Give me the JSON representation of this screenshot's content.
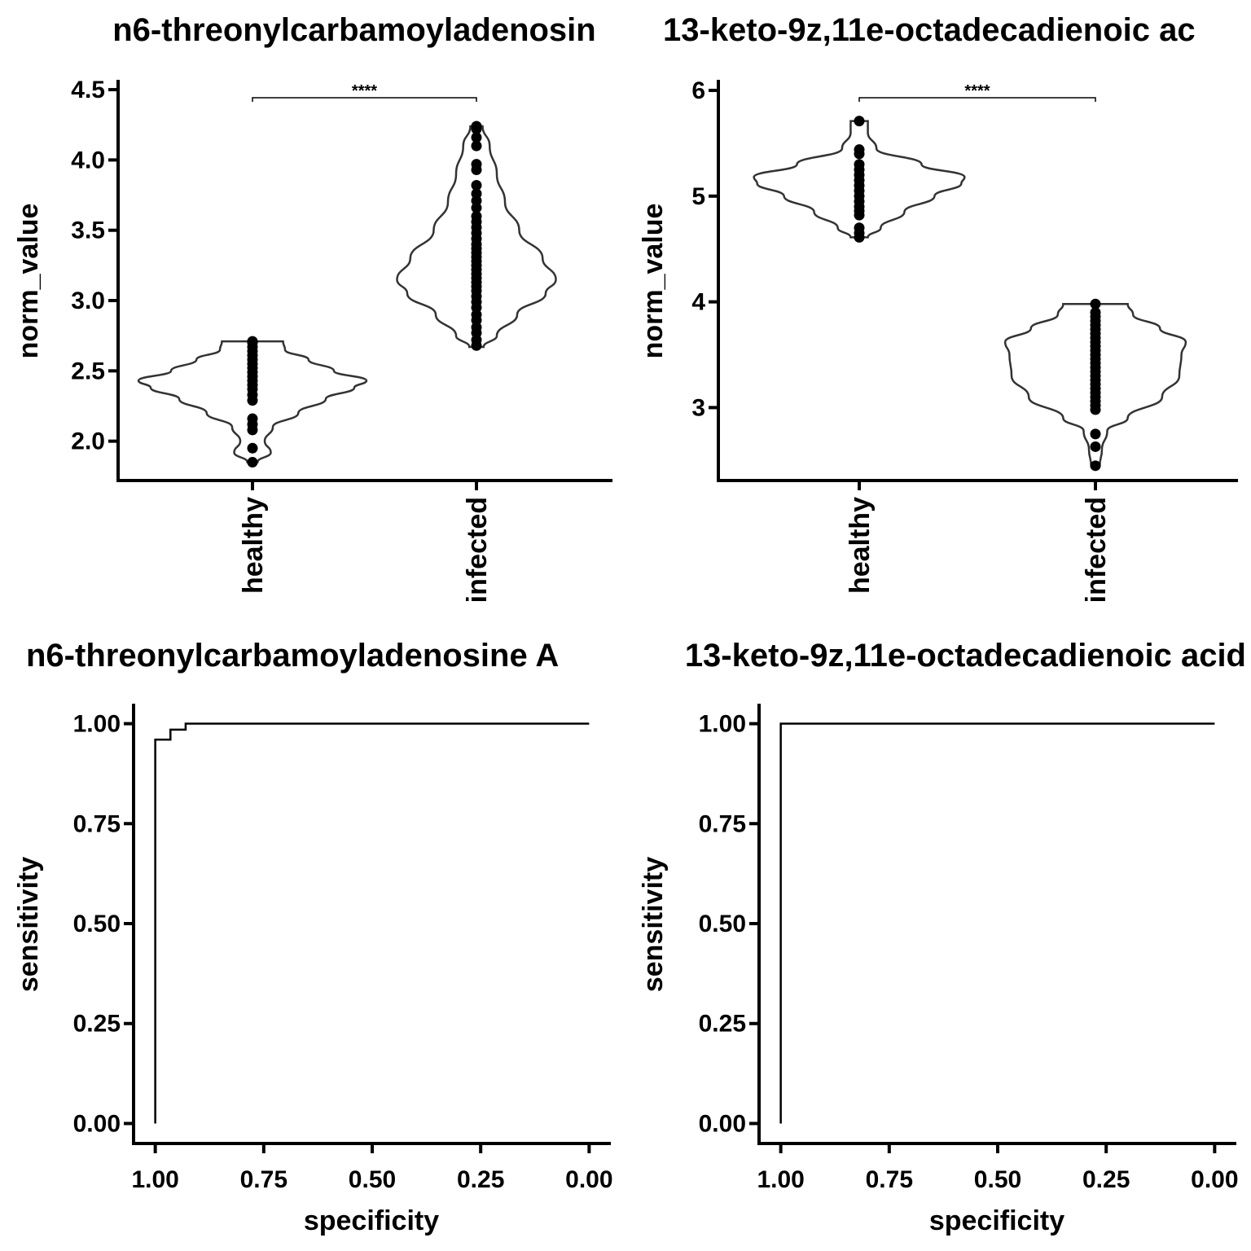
{
  "chart_data": [
    {
      "type": "violin",
      "title": "n6-threonylcarbamoyladenosin",
      "xlabel": "",
      "ylabel": "norm_value",
      "categories": [
        "healthy",
        "infected"
      ],
      "ylim": [
        1.72,
        4.57
      ],
      "yticks": [
        "2.0",
        "2.5",
        "3.0",
        "3.5",
        "4.0",
        "4.5"
      ],
      "significance": "****",
      "groups": [
        {
          "name": "healthy",
          "range": [
            1.85,
            2.71
          ],
          "density": [
            [
              1.85,
              0.05
            ],
            [
              1.92,
              0.18
            ],
            [
              2.0,
              0.12
            ],
            [
              2.1,
              0.2
            ],
            [
              2.2,
              0.45
            ],
            [
              2.3,
              0.72
            ],
            [
              2.38,
              1.0
            ],
            [
              2.43,
              1.12
            ],
            [
              2.5,
              0.8
            ],
            [
              2.58,
              0.55
            ],
            [
              2.65,
              0.32
            ],
            [
              2.71,
              0.3
            ]
          ],
          "points": [
            1.85,
            1.95,
            2.08,
            2.12,
            2.16,
            2.29,
            2.33,
            2.37,
            2.4,
            2.43,
            2.46,
            2.49,
            2.52,
            2.55,
            2.58,
            2.61,
            2.64,
            2.67,
            2.7,
            2.71
          ]
        },
        {
          "name": "infected",
          "range": [
            2.67,
            4.24
          ],
          "density": [
            [
              2.67,
              0.07
            ],
            [
              2.75,
              0.2
            ],
            [
              2.9,
              0.4
            ],
            [
              3.05,
              0.68
            ],
            [
              3.15,
              0.78
            ],
            [
              3.3,
              0.65
            ],
            [
              3.5,
              0.42
            ],
            [
              3.7,
              0.28
            ],
            [
              3.9,
              0.2
            ],
            [
              4.1,
              0.13
            ],
            [
              4.24,
              0.06
            ]
          ],
          "points": [
            2.68,
            2.72,
            2.77,
            2.81,
            2.86,
            2.9,
            2.95,
            2.99,
            3.03,
            3.07,
            3.1,
            3.13,
            3.16,
            3.19,
            3.22,
            3.25,
            3.28,
            3.31,
            3.34,
            3.37,
            3.4,
            3.44,
            3.48,
            3.52,
            3.56,
            3.6,
            3.66,
            3.71,
            3.76,
            3.82,
            3.93,
            3.97,
            4.1,
            4.16,
            4.22,
            4.24
          ]
        }
      ]
    },
    {
      "type": "violin",
      "title": "13-keto-9z,11e-octadecadienoic ac",
      "xlabel": "",
      "ylabel": "norm_value",
      "categories": [
        "healthy",
        "infected"
      ],
      "ylim": [
        2.31,
        6.1
      ],
      "yticks": [
        "3",
        "4",
        "5",
        "6"
      ],
      "significance": "****",
      "groups": [
        {
          "name": "healthy",
          "range": [
            4.61,
            5.71
          ],
          "density": [
            [
              4.61,
              0.08
            ],
            [
              4.7,
              0.2
            ],
            [
              4.85,
              0.42
            ],
            [
              5.0,
              0.7
            ],
            [
              5.12,
              0.95
            ],
            [
              5.18,
              0.98
            ],
            [
              5.3,
              0.58
            ],
            [
              5.45,
              0.16
            ],
            [
              5.6,
              0.08
            ],
            [
              5.71,
              0.08
            ]
          ],
          "points": [
            4.61,
            4.65,
            4.7,
            4.82,
            4.86,
            4.9,
            4.95,
            5.0,
            5.05,
            5.1,
            5.15,
            5.2,
            5.25,
            5.3,
            5.4,
            5.44,
            5.71
          ]
        },
        {
          "name": "infected",
          "range": [
            2.45,
            3.98
          ],
          "density": [
            [
              2.45,
              0.04
            ],
            [
              2.6,
              0.06
            ],
            [
              2.78,
              0.11
            ],
            [
              2.9,
              0.3
            ],
            [
              3.1,
              0.62
            ],
            [
              3.3,
              0.78
            ],
            [
              3.5,
              0.8
            ],
            [
              3.62,
              0.84
            ],
            [
              3.75,
              0.6
            ],
            [
              3.88,
              0.35
            ],
            [
              3.98,
              0.3
            ]
          ],
          "points": [
            2.45,
            2.63,
            2.75,
            2.98,
            3.02,
            3.06,
            3.1,
            3.14,
            3.18,
            3.22,
            3.26,
            3.3,
            3.34,
            3.38,
            3.42,
            3.46,
            3.5,
            3.54,
            3.58,
            3.62,
            3.66,
            3.7,
            3.74,
            3.78,
            3.82,
            3.86,
            3.9,
            3.98
          ]
        }
      ]
    },
    {
      "type": "line",
      "title": "n6-threonylcarbamoyladenosine A",
      "xlabel": "specificity",
      "ylabel": "sensitivity",
      "x_reversed": true,
      "xlim": [
        1.05,
        -0.05
      ],
      "ylim": [
        -0.05,
        1.05
      ],
      "xticks": [
        "1.00",
        "0.75",
        "0.50",
        "0.25",
        "0.00"
      ],
      "yticks": [
        "0.00",
        "0.25",
        "0.50",
        "0.75",
        "1.00"
      ],
      "series": [
        {
          "specificity": [
            1.0,
            1.0,
            0.965,
            0.965,
            0.93,
            0.93,
            0.0
          ],
          "sensitivity": [
            0.0,
            0.96,
            0.96,
            0.985,
            0.985,
            1.0,
            1.0
          ]
        }
      ]
    },
    {
      "type": "line",
      "title": "13-keto-9z,11e-octadecadienoic acid",
      "xlabel": "specificity",
      "ylabel": "sensitivity",
      "x_reversed": true,
      "xlim": [
        1.05,
        -0.05
      ],
      "ylim": [
        -0.05,
        1.05
      ],
      "xticks": [
        "1.00",
        "0.75",
        "0.50",
        "0.25",
        "0.00"
      ],
      "yticks": [
        "0.00",
        "0.25",
        "0.50",
        "0.75",
        "1.00"
      ],
      "series": [
        {
          "specificity": [
            1.0,
            1.0,
            0.0
          ],
          "sensitivity": [
            0.0,
            1.0,
            1.0
          ]
        }
      ]
    }
  ]
}
